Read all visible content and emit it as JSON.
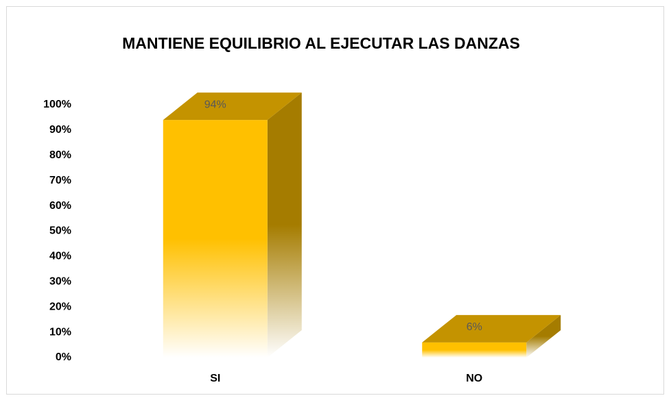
{
  "chart_data": {
    "type": "bar3d",
    "title": "MANTIENE EQUILIBRIO AL EJECUTAR LAS DANZAS",
    "categories": [
      "SI",
      "NO"
    ],
    "values": [
      94,
      6
    ],
    "value_labels": [
      "94%",
      "6%"
    ],
    "color": "#ffc000",
    "ylim": [
      0,
      100
    ],
    "yticks": [
      {
        "value": 0,
        "label": "0%"
      },
      {
        "value": 10,
        "label": "10%"
      },
      {
        "value": 20,
        "label": "20%"
      },
      {
        "value": 30,
        "label": "30%"
      },
      {
        "value": 40,
        "label": "40%"
      },
      {
        "value": 50,
        "label": "50%"
      },
      {
        "value": 60,
        "label": "60%"
      },
      {
        "value": 70,
        "label": "70%"
      },
      {
        "value": 80,
        "label": "80%"
      },
      {
        "value": 90,
        "label": "90%"
      },
      {
        "value": 100,
        "label": "100%"
      }
    ],
    "grid": false
  }
}
